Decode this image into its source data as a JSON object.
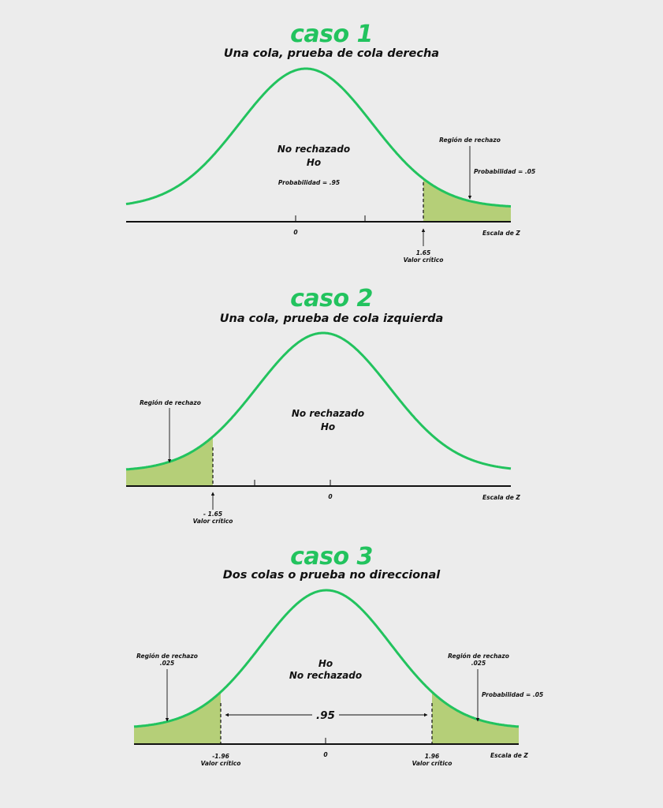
{
  "colors": {
    "curve": "#22c35e",
    "fill": "#b5cf78",
    "axis": "#111111",
    "background": "#ececec"
  },
  "cases": [
    {
      "title": "caso 1",
      "subtitle": "Una cola, prueba de cola derecha",
      "center_text": [
        "No rechazado",
        "Ho"
      ],
      "center_prob": "Probabilidad = .95",
      "zero_label": "0",
      "scale_label": "Escala de Z",
      "region_label": "Región de rechazo",
      "region_prob": "Probabilidad = .05",
      "critical_value": "1.65",
      "critical_label": "Valor crítico"
    },
    {
      "title": "caso 2",
      "subtitle": "Una cola, prueba de cola izquierda",
      "center_text": [
        "No rechazado",
        "Ho"
      ],
      "zero_label": "0",
      "scale_label": "Escala de Z",
      "region_label": "Región de rechazo",
      "critical_value": "- 1.65",
      "critical_label": "Valor crítico"
    },
    {
      "title": "caso 3",
      "subtitle": "Dos colas o prueba no direccional",
      "center_text": [
        "Ho",
        "No rechazado"
      ],
      "middle_prob": ".95",
      "zero_label": "0",
      "scale_label": "Escala de Z",
      "left_region_label": "Región de rechazo",
      "left_region_value": ".025",
      "right_region_label": "Región de rechazo",
      "right_region_value": ".025",
      "region_prob": "Probabilidad = .05",
      "left_critical_value": "-1.96",
      "left_critical_label": "Valor crítico",
      "right_critical_value": "1.96",
      "right_critical_label": "Valor crítico"
    }
  ]
}
